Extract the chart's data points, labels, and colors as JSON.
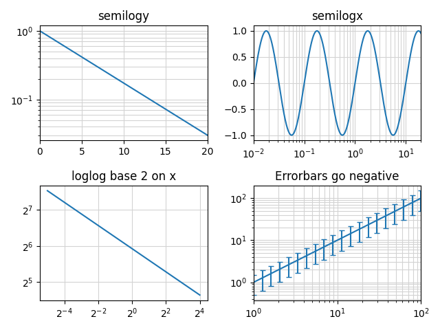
{
  "semilogy_title": "semilogy",
  "semilogx_title": "semilogx",
  "loglog_title": "loglog base 2 on x",
  "errorbars_title": "Errorbars go negative",
  "line_color": "#1f77b4",
  "fig_facecolor": "#ffffff",
  "semilogy_xlim": [
    0,
    20
  ],
  "semilogy_xticks": [
    0,
    5,
    10,
    15,
    20
  ],
  "semilogx_xlim": [
    0.01,
    20
  ],
  "semilogx_ylim": [
    -1.1,
    1.1
  ],
  "errorbars_xlim": [
    1,
    100
  ]
}
